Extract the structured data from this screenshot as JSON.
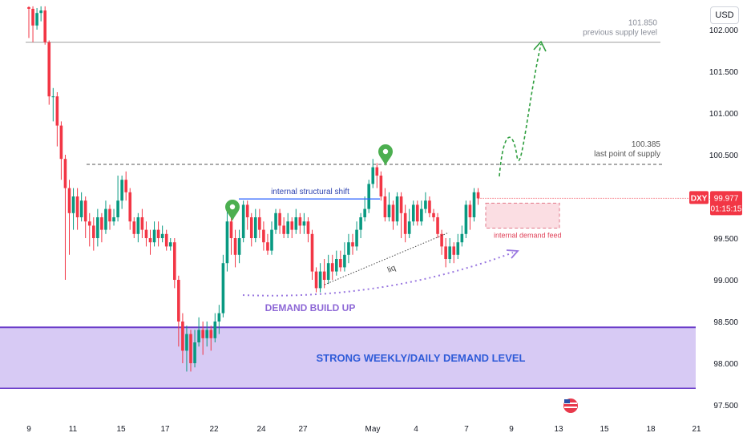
{
  "currency_button": "USD",
  "symbol": "DXY",
  "last_price": "99.977",
  "countdown": "01:15:15",
  "colors": {
    "up": "#089981",
    "down": "#f23645",
    "demand_zone": "#c9b8f0",
    "demand_border": "#6a3cc9",
    "pointer": "#4caf50",
    "projection": "#2e9e3e",
    "blue_line": "#2962ff"
  },
  "annotations": {
    "supply_prev_price": "101.850",
    "supply_prev_label": "previous supply level",
    "supply_last_price": "100.385",
    "supply_last_label": "last point of supply",
    "structural_shift": "internal structural shift",
    "internal_demand": "internal demand feed",
    "liq": "liq",
    "demand_build": "DEMAND BUILD UP",
    "strong_demand": "STRONG WEEKLY/DAILY DEMAND LEVEL"
  },
  "chart_data": {
    "type": "candlestick",
    "instrument": "DXY",
    "y_axis": {
      "ticks": [
        102.0,
        101.5,
        101.0,
        100.5,
        100.0,
        99.5,
        99.0,
        98.5,
        98.0,
        97.5
      ],
      "tick_labels": [
        "102.000",
        "101.500",
        "101.000",
        "100.500",
        "100.000",
        "99.500",
        "99.000",
        "98.500",
        "98.000",
        "97.500"
      ]
    },
    "x_axis": {
      "tick_labels": [
        "9",
        "11",
        "15",
        "17",
        "22",
        "24",
        "27",
        "May",
        "4",
        "7",
        "9",
        "13",
        "15",
        "18",
        "21"
      ]
    },
    "levels": {
      "previous_supply": 101.85,
      "last_point_of_supply": 100.385,
      "strong_demand_top": 98.43,
      "strong_demand_bottom": 97.7,
      "structural_shift": 99.97,
      "internal_demand_top": 99.92,
      "internal_demand_bottom": 99.62
    },
    "current_price": 99.977,
    "candles": [
      [
        102.27,
        102.25,
        102.28,
        101.9
      ],
      [
        102.25,
        102.05,
        102.28,
        101.85
      ],
      [
        102.05,
        102.2,
        102.26,
        102.0
      ],
      [
        102.2,
        102.23,
        102.28,
        102.1
      ],
      [
        102.23,
        101.85,
        102.28,
        101.82
      ],
      [
        101.85,
        101.2,
        101.87,
        101.1
      ],
      [
        101.2,
        101.2,
        101.3,
        100.9
      ],
      [
        101.2,
        100.85,
        101.25,
        100.6
      ],
      [
        100.85,
        100.45,
        100.9,
        100.2
      ],
      [
        100.45,
        100.1,
        100.5,
        99.0
      ],
      [
        100.1,
        99.8,
        100.2,
        99.3
      ],
      [
        99.8,
        100.0,
        100.1,
        99.6
      ],
      [
        100.0,
        99.75,
        100.1,
        99.6
      ],
      [
        99.75,
        99.95,
        100.05,
        99.7
      ],
      [
        99.95,
        99.7,
        100.0,
        99.5
      ],
      [
        99.7,
        99.65,
        99.8,
        99.4
      ],
      [
        99.65,
        99.5,
        99.75,
        99.35
      ],
      [
        99.5,
        99.75,
        99.85,
        99.4
      ],
      [
        99.75,
        99.6,
        99.8,
        99.45
      ],
      [
        99.6,
        99.85,
        99.95,
        99.55
      ],
      [
        99.85,
        99.7,
        99.9,
        99.6
      ],
      [
        99.7,
        99.75,
        99.85,
        99.65
      ],
      [
        99.75,
        99.95,
        100.25,
        99.7
      ],
      [
        99.95,
        100.2,
        100.25,
        99.85
      ],
      [
        100.2,
        100.05,
        100.3,
        99.95
      ],
      [
        100.05,
        99.7,
        100.1,
        99.6
      ],
      [
        99.7,
        99.55,
        99.75,
        99.5
      ],
      [
        99.55,
        99.75,
        99.8,
        99.45
      ],
      [
        99.75,
        99.6,
        99.85,
        99.5
      ],
      [
        99.6,
        99.5,
        99.7,
        99.4
      ],
      [
        99.5,
        99.45,
        99.6,
        99.3
      ],
      [
        99.45,
        99.6,
        99.7,
        99.4
      ],
      [
        99.6,
        99.5,
        99.7,
        99.4
      ],
      [
        99.5,
        99.55,
        99.65,
        99.45
      ],
      [
        99.55,
        99.4,
        99.6,
        99.35
      ],
      [
        99.4,
        99.45,
        99.5,
        99.35
      ],
      [
        99.45,
        99.0,
        99.5,
        98.9
      ],
      [
        99.0,
        98.5,
        99.05,
        98.2
      ],
      [
        98.5,
        98.15,
        98.6,
        98.0
      ],
      [
        98.15,
        98.35,
        98.45,
        97.9
      ],
      [
        98.35,
        98.0,
        98.4,
        97.9
      ],
      [
        98.0,
        98.25,
        98.4,
        97.95
      ],
      [
        98.25,
        98.4,
        98.55,
        98.2
      ],
      [
        98.4,
        98.3,
        98.5,
        98.1
      ],
      [
        98.3,
        98.4,
        98.5,
        98.2
      ],
      [
        98.4,
        98.3,
        98.45,
        98.15
      ],
      [
        98.3,
        98.5,
        98.6,
        98.25
      ],
      [
        98.5,
        98.6,
        98.7,
        98.35
      ],
      [
        98.6,
        99.2,
        99.3,
        98.55
      ],
      [
        99.2,
        99.7,
        99.9,
        99.1
      ],
      [
        99.7,
        99.5,
        99.75,
        99.3
      ],
      [
        99.5,
        99.3,
        99.6,
        99.15
      ],
      [
        99.3,
        99.5,
        99.6,
        99.2
      ],
      [
        99.5,
        99.9,
        99.95,
        99.45
      ],
      [
        99.9,
        99.75,
        99.95,
        99.6
      ],
      [
        99.75,
        99.5,
        99.8,
        99.4
      ],
      [
        99.5,
        99.75,
        99.85,
        99.45
      ],
      [
        99.75,
        99.6,
        99.85,
        99.5
      ],
      [
        99.6,
        99.45,
        99.7,
        99.35
      ],
      [
        99.45,
        99.35,
        99.55,
        99.3
      ],
      [
        99.35,
        99.6,
        99.7,
        99.3
      ],
      [
        99.6,
        99.8,
        99.85,
        99.55
      ],
      [
        99.8,
        99.65,
        99.85,
        99.55
      ],
      [
        99.65,
        99.55,
        99.75,
        99.5
      ],
      [
        99.55,
        99.7,
        99.8,
        99.5
      ],
      [
        99.7,
        99.6,
        99.75,
        99.5
      ],
      [
        99.6,
        99.75,
        99.85,
        99.55
      ],
      [
        99.75,
        99.65,
        99.8,
        99.55
      ],
      [
        99.65,
        99.7,
        99.8,
        99.55
      ],
      [
        99.7,
        99.55,
        99.75,
        99.45
      ],
      [
        99.55,
        99.1,
        99.6,
        99.0
      ],
      [
        99.1,
        98.9,
        99.15,
        98.85
      ],
      [
        98.9,
        99.1,
        99.2,
        98.85
      ],
      [
        99.1,
        99.0,
        99.25,
        98.9
      ],
      [
        99.0,
        99.2,
        99.3,
        98.95
      ],
      [
        99.2,
        99.1,
        99.3,
        99.0
      ],
      [
        99.1,
        99.25,
        99.35,
        99.05
      ],
      [
        99.25,
        99.15,
        99.35,
        99.1
      ],
      [
        99.15,
        99.3,
        99.45,
        99.1
      ],
      [
        99.3,
        99.45,
        99.55,
        99.2
      ],
      [
        99.45,
        99.4,
        99.55,
        99.3
      ],
      [
        99.4,
        99.6,
        99.7,
        99.35
      ],
      [
        99.6,
        99.75,
        99.8,
        99.5
      ],
      [
        99.75,
        99.85,
        100.0,
        99.7
      ],
      [
        99.85,
        100.15,
        100.2,
        99.8
      ],
      [
        100.15,
        100.35,
        100.45,
        100.1
      ],
      [
        100.35,
        100.25,
        100.4,
        100.1
      ],
      [
        100.25,
        100.0,
        100.3,
        99.95
      ],
      [
        100.0,
        99.75,
        100.1,
        99.7
      ],
      [
        99.75,
        99.9,
        100.05,
        99.7
      ],
      [
        99.9,
        99.7,
        99.95,
        99.6
      ],
      [
        99.7,
        100.0,
        100.05,
        99.65
      ],
      [
        100.0,
        99.8,
        100.05,
        99.5
      ],
      [
        99.8,
        99.55,
        99.9,
        99.45
      ],
      [
        99.55,
        99.7,
        99.85,
        99.5
      ],
      [
        99.7,
        99.9,
        99.95,
        99.65
      ],
      [
        99.9,
        99.7,
        99.95,
        99.65
      ],
      [
        99.7,
        99.85,
        99.95,
        99.65
      ],
      [
        99.85,
        99.95,
        100.05,
        99.8
      ],
      [
        99.95,
        99.8,
        100.0,
        99.75
      ],
      [
        99.8,
        99.75,
        99.85,
        99.7
      ],
      [
        99.75,
        99.55,
        99.8,
        99.5
      ],
      [
        99.55,
        99.4,
        99.6,
        99.3
      ],
      [
        99.4,
        99.25,
        99.5,
        99.15
      ],
      [
        99.25,
        99.4,
        99.5,
        99.2
      ],
      [
        99.4,
        99.3,
        99.45,
        99.2
      ],
      [
        99.3,
        99.45,
        99.55,
        99.25
      ],
      [
        99.45,
        99.55,
        99.65,
        99.4
      ],
      [
        99.55,
        99.9,
        99.95,
        99.5
      ],
      [
        99.9,
        99.75,
        99.95,
        99.6
      ],
      [
        99.75,
        100.05,
        100.1,
        99.7
      ],
      [
        100.05,
        99.977,
        100.1,
        99.9
      ]
    ]
  },
  "x_tick_positions_note": ""
}
